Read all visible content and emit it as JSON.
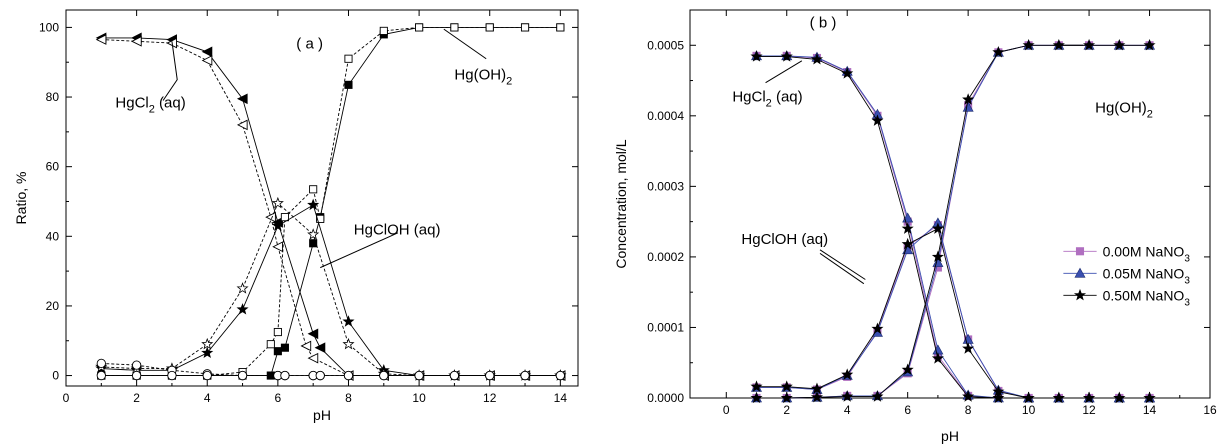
{
  "chart_data": [
    {
      "type": "line",
      "panel_label": "( a )",
      "xlabel": "pH",
      "ylabel": "Ratio, %",
      "xlim": [
        0,
        14.5
      ],
      "ylim": [
        -3,
        105
      ],
      "xticks": [
        0,
        2,
        4,
        6,
        8,
        10,
        12,
        14
      ],
      "yticks": [
        0,
        20,
        40,
        60,
        80,
        100
      ],
      "grid": false,
      "legend": false,
      "annotations": [
        {
          "text": "HgCl",
          "sub": "2",
          "rest": " (aq)",
          "x": 3,
          "y": 96
        },
        {
          "text": "Hg(OH)",
          "sub": "2",
          "rest": "",
          "x": 10.7,
          "y": 99.5
        },
        {
          "text": "HgClOH (aq)",
          "sub": "",
          "rest": "",
          "x": 7.2,
          "y": 37
        }
      ],
      "series": [
        {
          "marker": "tri-left-filled",
          "dash": false,
          "x": [
            1,
            2,
            3,
            4,
            5,
            6,
            7,
            7.2,
            8,
            9,
            10,
            11,
            12,
            13,
            14
          ],
          "y": [
            97,
            97,
            96.5,
            93,
            79.5,
            44,
            12,
            8,
            0,
            0,
            0,
            0,
            0,
            0,
            0
          ]
        },
        {
          "marker": "tri-left-open",
          "dash": true,
          "x": [
            1,
            2,
            3,
            4,
            5,
            5.8,
            6,
            6.8,
            7,
            8,
            9,
            10,
            11,
            12,
            13,
            14
          ],
          "y": [
            96.5,
            96,
            95.5,
            90.5,
            72,
            45.5,
            37,
            8.5,
            5,
            0,
            0,
            0,
            0,
            0,
            0,
            0
          ]
        },
        {
          "marker": "square-filled",
          "dash": false,
          "x": [
            1,
            2,
            3,
            4,
            5,
            5.8,
            6,
            6.2,
            7,
            7.2,
            8,
            9,
            10,
            11,
            12,
            13,
            14
          ],
          "y": [
            0,
            0,
            0,
            0,
            0,
            0,
            7,
            8,
            38,
            45.5,
            83.5,
            98,
            100,
            100,
            100,
            100,
            100
          ]
        },
        {
          "marker": "square-open",
          "dash": true,
          "x": [
            1,
            2,
            3,
            4,
            5,
            5.8,
            6,
            6.2,
            7,
            7.2,
            8,
            9,
            10,
            11,
            12,
            13,
            14
          ],
          "y": [
            0,
            0,
            0,
            0,
            1,
            9,
            12.5,
            45.5,
            53.5,
            45,
            91,
            99,
            100,
            100,
            100,
            100,
            100
          ]
        },
        {
          "marker": "star-filled",
          "dash": false,
          "x": [
            1,
            2,
            3,
            4,
            5,
            6,
            7,
            8,
            9,
            10,
            11,
            12,
            13,
            14
          ],
          "y": [
            2,
            1.5,
            1.5,
            6.5,
            19,
            43,
            49,
            15.5,
            1.5,
            0,
            0,
            0,
            0,
            0
          ]
        },
        {
          "marker": "star-open",
          "dash": true,
          "x": [
            1,
            2,
            3,
            4,
            5,
            6,
            7,
            8,
            9,
            10,
            11,
            12,
            13,
            14
          ],
          "y": [
            2.5,
            2,
            2,
            9,
            25,
            49.5,
            40.5,
            9,
            0.5,
            0,
            0,
            0,
            0,
            0
          ]
        },
        {
          "marker": "circle-open",
          "dash": true,
          "x": [
            1,
            2,
            3,
            4,
            5,
            6,
            6.2,
            7,
            7.2,
            8,
            9,
            10,
            11,
            12,
            13,
            14
          ],
          "y": [
            3.5,
            3,
            1.5,
            0.5,
            0,
            0,
            0,
            0,
            0,
            0,
            0,
            0,
            0,
            0,
            0,
            0
          ]
        },
        {
          "marker": "circle-open",
          "dash": false,
          "x": [
            1,
            2,
            3,
            4,
            5,
            6,
            6.2,
            7,
            7.2,
            8,
            9,
            10,
            11,
            12,
            13,
            14
          ],
          "y": [
            0,
            0,
            0,
            0,
            0,
            0,
            0,
            0,
            0,
            0,
            0,
            0,
            0,
            0,
            0,
            0
          ]
        }
      ]
    },
    {
      "type": "line",
      "panel_label": "( b )",
      "xlabel": "pH",
      "ylabel": "Concentration, mol/L",
      "xlim": [
        -1.2,
        16
      ],
      "ylim": [
        0,
        0.00055
      ],
      "xticks": [
        0,
        2,
        4,
        6,
        8,
        10,
        12,
        14,
        16
      ],
      "xtick_labels": [
        "0",
        "2",
        "4",
        "6",
        "8",
        "10",
        "12",
        "14",
        "16"
      ],
      "yticks": [
        0,
        0.0001,
        0.0002,
        0.0003,
        0.0004,
        0.0005
      ],
      "ytick_labels": [
        "0.0000",
        "0.0001",
        "0.0002",
        "0.0003",
        "0.0004",
        "0.0005"
      ],
      "grid": false,
      "legend": "right-middle",
      "annotations": [
        {
          "text": "HgCl",
          "sub": "2",
          "rest": " (aq)",
          "x": 2.5,
          "y": 0.000478
        },
        {
          "text": "Hg(OH)",
          "sub": "2",
          "rest": "",
          "x": 10.8,
          "y": 0.0005
        },
        {
          "text": "HgClOH (aq)",
          "sub": "",
          "rest": "",
          "x": 4.6,
          "y": 0.000168
        }
      ],
      "x": [
        1,
        2,
        3,
        4,
        5,
        6,
        7,
        8,
        9,
        10,
        11,
        12,
        13,
        14
      ],
      "series": [
        {
          "name": "0.00M NaNO",
          "name_sub": "3",
          "color": "#b06fc0",
          "marker": "square",
          "curves": [
            [
              0.000485,
              0.000485,
              0.000482,
              0.000462,
              0.0004,
              0.00025,
              6e-05,
              3e-06,
              0,
              0,
              0,
              0,
              0,
              0
            ],
            [
              0,
              0,
              1e-06,
              3e-06,
              3e-06,
              3.5e-05,
              0.000185,
              0.000415,
              0.00049,
              0.0005,
              0.0005,
              0.0005,
              0.0005,
              0.0005
            ],
            [
              1.5e-05,
              1.5e-05,
              1.2e-05,
              3e-05,
              9.5e-05,
              0.000215,
              0.000245,
              8.3e-05,
              1e-05,
              0,
              0,
              0,
              0,
              0
            ]
          ]
        },
        {
          "name": "0.05M NaNO",
          "name_sub": "3",
          "color": "#3a4fb0",
          "marker": "triangle",
          "curves": [
            [
              0.000485,
              0.000485,
              0.000483,
              0.000463,
              0.000402,
              0.000255,
              6.8e-05,
              4e-06,
              0,
              0,
              0,
              0,
              0,
              0
            ],
            [
              0,
              0,
              1e-06,
              3e-06,
              3e-06,
              3.7e-05,
              0.000192,
              0.000412,
              0.00049,
              0.0005,
              0.0005,
              0.0005,
              0.0005,
              0.0005
            ],
            [
              1.5e-05,
              1.5e-05,
              1.2e-05,
              3.2e-05,
              9.3e-05,
              0.00021,
              0.000248,
              8.3e-05,
              1.1e-05,
              0,
              0,
              0,
              0,
              0
            ]
          ]
        },
        {
          "name": "0.50M NaNO",
          "name_sub": "3",
          "color": "#000000",
          "marker": "star",
          "curves": [
            [
              0.000484,
              0.000484,
              0.00048,
              0.00046,
              0.000393,
              0.00024,
              5.6e-05,
              2e-06,
              0,
              0,
              0,
              0,
              0,
              0
            ],
            [
              0,
              0,
              1e-06,
              2e-06,
              2e-06,
              4e-05,
              0.0002,
              0.000423,
              0.00049,
              0.0005,
              0.0005,
              0.0005,
              0.0005,
              0.0005
            ],
            [
              1.6e-05,
              1.6e-05,
              1.3e-05,
              3.3e-05,
              9.8e-05,
              0.000218,
              0.00024,
              7e-05,
              9e-06,
              0,
              0,
              0,
              0,
              0
            ]
          ]
        }
      ]
    }
  ]
}
